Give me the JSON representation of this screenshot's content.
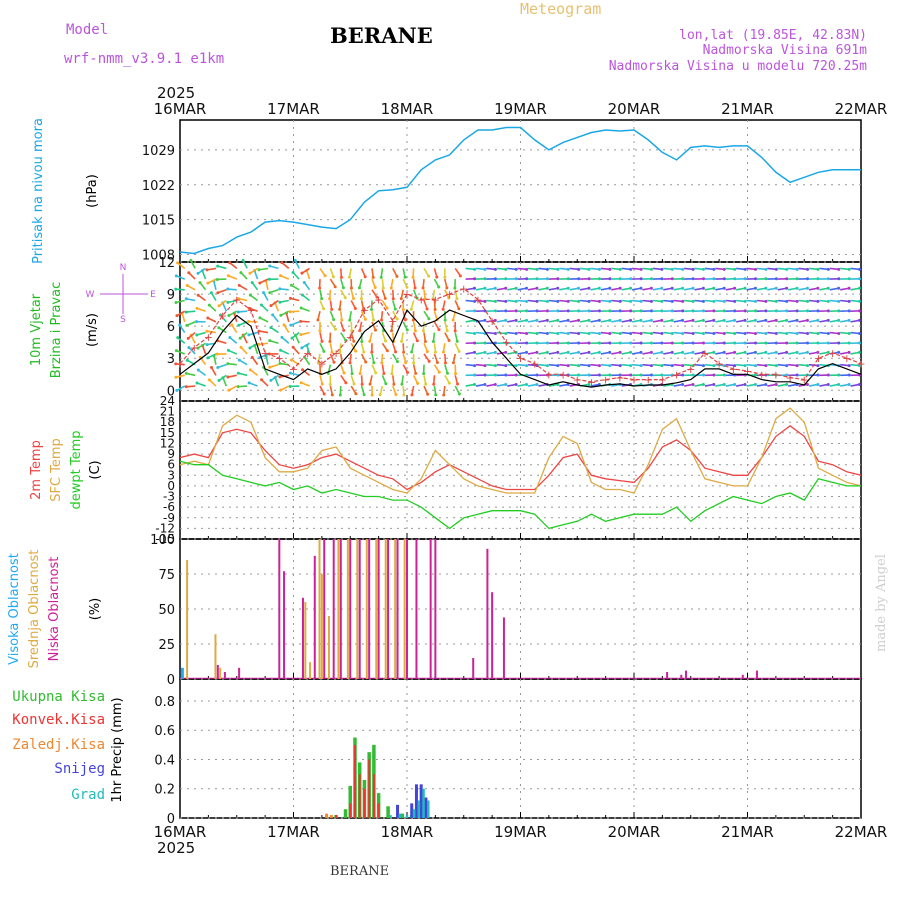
{
  "header": {
    "model_label": "Model",
    "model_name": "wrf-nmm_v3.9.1 e1km",
    "station": "BERANE",
    "product": "Meteogram",
    "lonlat": "lon,lat (19.85E, 42.83N)",
    "altitude": "Nadmorska Visina 691m",
    "model_altitude": "Nadmorska Visina u modelu 720.25m",
    "footer_station": "BERANE",
    "credit": "made by Angel"
  },
  "time_axis": {
    "year": "2025",
    "labels": [
      "16MAR",
      "17MAR",
      "18MAR",
      "19MAR",
      "20MAR",
      "21MAR",
      "22MAR"
    ]
  },
  "colors": {
    "pressure": "#1aa7e6",
    "wind_label": "#22bb22",
    "wind_speed": "#000000",
    "gust": "#dd4444",
    "t2m": "#ee4444",
    "tsfc": "#ddaa44",
    "dewpoint": "#22cc22",
    "cloud_high": "#22aaee",
    "cloud_mid": "#ddaa44",
    "cloud_low": "#cc2299",
    "precip_total": "#33bb33",
    "precip_conv": "#ee3333",
    "precip_freezing": "#ee8833",
    "precip_snow": "#4444dd",
    "precip_graupel": "#22bbbb",
    "title": "#000000",
    "meteogram": "#e8c070",
    "info": "#bb55dd",
    "grid": "#999999"
  },
  "chart_data": [
    {
      "type": "line",
      "panel": "pressure",
      "ylabel": "(hPa)",
      "side_labels": [
        "Pritisak na nivou mora"
      ],
      "yticks": [
        1008,
        1015,
        1022,
        1029
      ],
      "ylim": [
        1006.5,
        1035
      ],
      "x_unit": "hours from 16MAR 00UTC",
      "series": [
        {
          "x": [
            0,
            3,
            6,
            9,
            12,
            15,
            18,
            21,
            24,
            27,
            30,
            33,
            36,
            39,
            42,
            45,
            48,
            51,
            54,
            57,
            60,
            63,
            66,
            69,
            72,
            75,
            78,
            81,
            84,
            87,
            90,
            93,
            96,
            99,
            102,
            105,
            108,
            111,
            114,
            117,
            120,
            123,
            126,
            129,
            132,
            135,
            138,
            141,
            144
          ],
          "values": [
            1008.5,
            1008.2,
            1009.2,
            1009.8,
            1011.5,
            1012.5,
            1014.5,
            1014.8,
            1014.5,
            1014.0,
            1013.5,
            1013.2,
            1015.0,
            1018.5,
            1020.8,
            1021.0,
            1021.5,
            1025.0,
            1027.0,
            1028.0,
            1031.0,
            1033.0,
            1033.0,
            1033.5,
            1033.5,
            1031.0,
            1029.0,
            1030.5,
            1031.5,
            1032.5,
            1033.0,
            1032.8,
            1033.0,
            1031.0,
            1028.5,
            1027.0,
            1029.5,
            1029.8,
            1029.5,
            1029.8,
            1029.8,
            1027.5,
            1024.5,
            1022.5,
            1023.5,
            1024.5,
            1025.0,
            1025.0,
            1025.0
          ]
        }
      ]
    },
    {
      "type": "line",
      "panel": "wind",
      "ylabel": "(m/s)",
      "side_labels": [
        "10m Vjetar",
        "Brzina i Pravac"
      ],
      "direction_key": [
        "N",
        "E",
        "S",
        "W"
      ],
      "yticks": [
        0,
        3,
        6,
        9,
        12
      ],
      "ylim": [
        -1,
        12
      ],
      "x_unit": "hours from 16MAR 00UTC",
      "series": [
        {
          "name": "speed",
          "x": [
            0,
            3,
            6,
            9,
            12,
            15,
            18,
            21,
            24,
            27,
            30,
            33,
            36,
            39,
            42,
            45,
            48,
            51,
            54,
            57,
            60,
            63,
            66,
            69,
            72,
            75,
            78,
            81,
            84,
            87,
            90,
            93,
            96,
            99,
            102,
            105,
            108,
            111,
            114,
            117,
            120,
            123,
            126,
            129,
            132,
            135,
            138,
            141,
            144
          ],
          "values": [
            1.5,
            2.5,
            3.5,
            5.5,
            7.0,
            6.0,
            2.0,
            1.5,
            1.0,
            2.0,
            1.5,
            2.0,
            3.5,
            5.5,
            6.5,
            4.5,
            7.5,
            6.0,
            6.5,
            7.5,
            7.0,
            6.5,
            4.5,
            3.0,
            1.5,
            1.0,
            0.5,
            0.8,
            0.5,
            0.3,
            0.5,
            0.6,
            0.4,
            0.5,
            0.5,
            0.7,
            1.0,
            2.0,
            2.0,
            1.5,
            1.5,
            1.0,
            0.8,
            0.8,
            0.5,
            2.0,
            2.5,
            2.0,
            1.5
          ]
        },
        {
          "name": "gust",
          "x": [
            0,
            3,
            6,
            9,
            12,
            15,
            18,
            21,
            24,
            27,
            30,
            33,
            36,
            39,
            42,
            45,
            48,
            51,
            54,
            57,
            60,
            63,
            66,
            69,
            72,
            75,
            78,
            81,
            84,
            87,
            90,
            93,
            96,
            99,
            102,
            105,
            108,
            111,
            114,
            117,
            120,
            123,
            126,
            129,
            132,
            135,
            138,
            141,
            144
          ],
          "values": [
            2.5,
            4.0,
            5.0,
            7.0,
            8.5,
            7.5,
            3.5,
            3.0,
            2.0,
            3.5,
            2.5,
            3.5,
            5.0,
            7.5,
            8.5,
            6.5,
            9.0,
            8.5,
            8.5,
            9.0,
            9.5,
            8.5,
            6.5,
            4.5,
            3.0,
            2.5,
            1.5,
            1.5,
            1.0,
            0.8,
            1.0,
            1.2,
            1.0,
            1.0,
            1.0,
            1.5,
            2.0,
            3.5,
            2.5,
            2.0,
            1.8,
            1.5,
            1.5,
            1.2,
            1.0,
            3.0,
            3.5,
            3.0,
            2.5
          ]
        }
      ]
    },
    {
      "type": "line",
      "panel": "temperature",
      "ylabel": "(C)",
      "side_labels": [
        "2m Temp",
        "SFC Temp",
        "dewpt Temp"
      ],
      "yticks": [
        -15,
        -12,
        -9,
        -6,
        -3,
        0,
        3,
        6,
        9,
        12,
        15,
        18,
        21,
        24
      ],
      "ylim": [
        -15,
        24
      ],
      "x_unit": "hours from 16MAR 00UTC",
      "series": [
        {
          "name": "2m Temp",
          "x": [
            0,
            3,
            6,
            9,
            12,
            15,
            18,
            21,
            24,
            27,
            30,
            33,
            36,
            39,
            42,
            45,
            48,
            51,
            54,
            57,
            60,
            63,
            66,
            69,
            72,
            75,
            78,
            81,
            84,
            87,
            90,
            93,
            96,
            99,
            102,
            105,
            108,
            111,
            114,
            117,
            120,
            123,
            126,
            129,
            132,
            135,
            138,
            141,
            144
          ],
          "values": [
            8,
            9,
            8,
            15,
            16,
            15,
            10,
            6,
            5,
            6,
            8,
            9,
            7,
            5,
            3,
            2,
            -1,
            1,
            4,
            6,
            4,
            2,
            0,
            -1,
            -1,
            -1,
            3,
            8,
            9,
            3,
            2,
            1.5,
            1,
            5,
            11,
            13,
            10,
            5,
            4,
            3,
            3,
            8,
            14,
            17,
            14,
            7,
            6,
            4,
            3
          ]
        },
        {
          "name": "SFC Temp",
          "x": [
            0,
            3,
            6,
            9,
            12,
            15,
            18,
            21,
            24,
            27,
            30,
            33,
            36,
            39,
            42,
            45,
            48,
            51,
            54,
            57,
            60,
            63,
            66,
            69,
            72,
            75,
            78,
            81,
            84,
            87,
            90,
            93,
            96,
            99,
            102,
            105,
            108,
            111,
            114,
            117,
            120,
            123,
            126,
            129,
            132,
            135,
            138,
            141,
            144
          ],
          "values": [
            6,
            7,
            6,
            17,
            20,
            18,
            8,
            4,
            4,
            5,
            10,
            11,
            5,
            3,
            1,
            -1,
            -2,
            2,
            10,
            6,
            2,
            0,
            -1,
            -2,
            -2,
            -2,
            8,
            14,
            12,
            1,
            -1,
            -1,
            -2,
            6,
            16,
            19,
            10,
            2,
            1,
            0,
            0,
            8,
            19,
            22,
            18,
            5,
            3,
            1,
            0
          ]
        },
        {
          "name": "dewpt Temp",
          "x": [
            0,
            3,
            6,
            9,
            12,
            15,
            18,
            21,
            24,
            27,
            30,
            33,
            36,
            39,
            42,
            45,
            48,
            51,
            54,
            57,
            60,
            63,
            66,
            69,
            72,
            75,
            78,
            81,
            84,
            87,
            90,
            93,
            96,
            99,
            102,
            105,
            108,
            111,
            114,
            117,
            120,
            123,
            126,
            129,
            132,
            135,
            138,
            141,
            144
          ],
          "values": [
            7,
            6,
            6,
            3,
            2,
            1,
            0,
            1,
            -1,
            0,
            -2,
            -1,
            -2,
            -3,
            -3,
            -4,
            -4,
            -6,
            -9,
            -12,
            -9,
            -8,
            -7,
            -7,
            -7,
            -8,
            -12,
            -11,
            -10,
            -8,
            -10,
            -9,
            -8,
            -8,
            -8,
            -6,
            -10,
            -7,
            -5,
            -3,
            -4,
            -5,
            -3,
            -2,
            -4,
            2,
            1,
            0,
            0
          ]
        }
      ]
    },
    {
      "type": "bar",
      "panel": "clouds",
      "ylabel": "(%)",
      "side_labels": [
        "Visoka Oblacnost",
        "Srednja Oblacnost",
        "Niska Oblacnost"
      ],
      "yticks": [
        0,
        25,
        50,
        75,
        100
      ],
      "ylim": [
        0,
        100
      ],
      "x_unit": "hours from 16MAR 00UTC",
      "series": [
        {
          "name": "Visoka Oblacnost",
          "x": [
            0.5
          ],
          "values": [
            8
          ]
        },
        {
          "name": "Srednja Oblacnost",
          "x": [
            1.5,
            7.5,
            8.5,
            26.5,
            27.5,
            29.5,
            30.0,
            31.5,
            33.5,
            35.5,
            37.5,
            39.5,
            41.5,
            43.5,
            45.5,
            47.5
          ],
          "values": [
            85,
            32,
            8,
            55,
            12,
            100,
            75,
            45,
            100,
            100,
            100,
            100,
            100,
            100,
            100,
            100
          ]
        },
        {
          "name": "Niska Oblacnost",
          "x": [
            8.0,
            9.5,
            12.5,
            21.0,
            22.0,
            26.0,
            28.5,
            30.5,
            32.5,
            34.0,
            36.0,
            38.0,
            40.0,
            42.0,
            44.0,
            46.0,
            48.0,
            50.0,
            53.0,
            54.0,
            62.0,
            65.0,
            66.0,
            68.5,
            103.0,
            106.0,
            107.0,
            119.0,
            122.0
          ],
          "values": [
            10,
            5,
            8,
            100,
            77,
            58,
            88,
            100,
            100,
            100,
            100,
            100,
            100,
            100,
            100,
            100,
            100,
            100,
            100,
            100,
            15,
            93,
            62,
            44,
            5,
            3,
            6,
            3,
            6
          ]
        }
      ]
    },
    {
      "type": "bar",
      "panel": "precipitation",
      "ylabel": "1hr Precip (mm)",
      "side_labels": [
        "Ukupna Kisa",
        "Konvek.Kisa",
        "Zaledj.Kisa",
        "Snijeg",
        "Grad"
      ],
      "yticks": [
        0,
        0.2,
        0.4,
        0.6,
        0.8
      ],
      "ylim": [
        0,
        0.95
      ],
      "x_unit": "hours from 16MAR 00UTC",
      "series": [
        {
          "name": "Ukupna Kisa",
          "x": [
            33.0,
            35.0,
            36.0,
            37.0,
            38.0,
            39.0,
            40.0,
            41.0,
            42.0,
            44.0,
            47.0,
            49.0
          ],
          "values": [
            0.02,
            0.06,
            0.22,
            0.55,
            0.38,
            0.26,
            0.45,
            0.5,
            0.17,
            0.08,
            0.03,
            0.02
          ]
        },
        {
          "name": "Konvek.Kisa",
          "x": [
            33.0,
            36.0,
            37.0,
            38.0,
            39.0,
            40.0,
            41.0,
            42.0
          ],
          "values": [
            0.02,
            0.1,
            0.5,
            0.3,
            0.2,
            0.4,
            0.3,
            0.1
          ]
        },
        {
          "name": "Zaledj.Kisa",
          "x": [
            31.0,
            32.0
          ],
          "values": [
            0.03,
            0.02
          ]
        },
        {
          "name": "Snijeg",
          "x": [
            46.0,
            49.0,
            50.0,
            51.0,
            52.0
          ],
          "values": [
            0.09,
            0.1,
            0.23,
            0.23,
            0.14
          ]
        },
        {
          "name": "Grad",
          "x": [
            44.5,
            46.5,
            48.0,
            49.5,
            50.5,
            51.5,
            52.5
          ],
          "values": [
            0.02,
            0.03,
            0.02,
            0.06,
            0.12,
            0.2,
            0.12
          ]
        }
      ]
    }
  ]
}
